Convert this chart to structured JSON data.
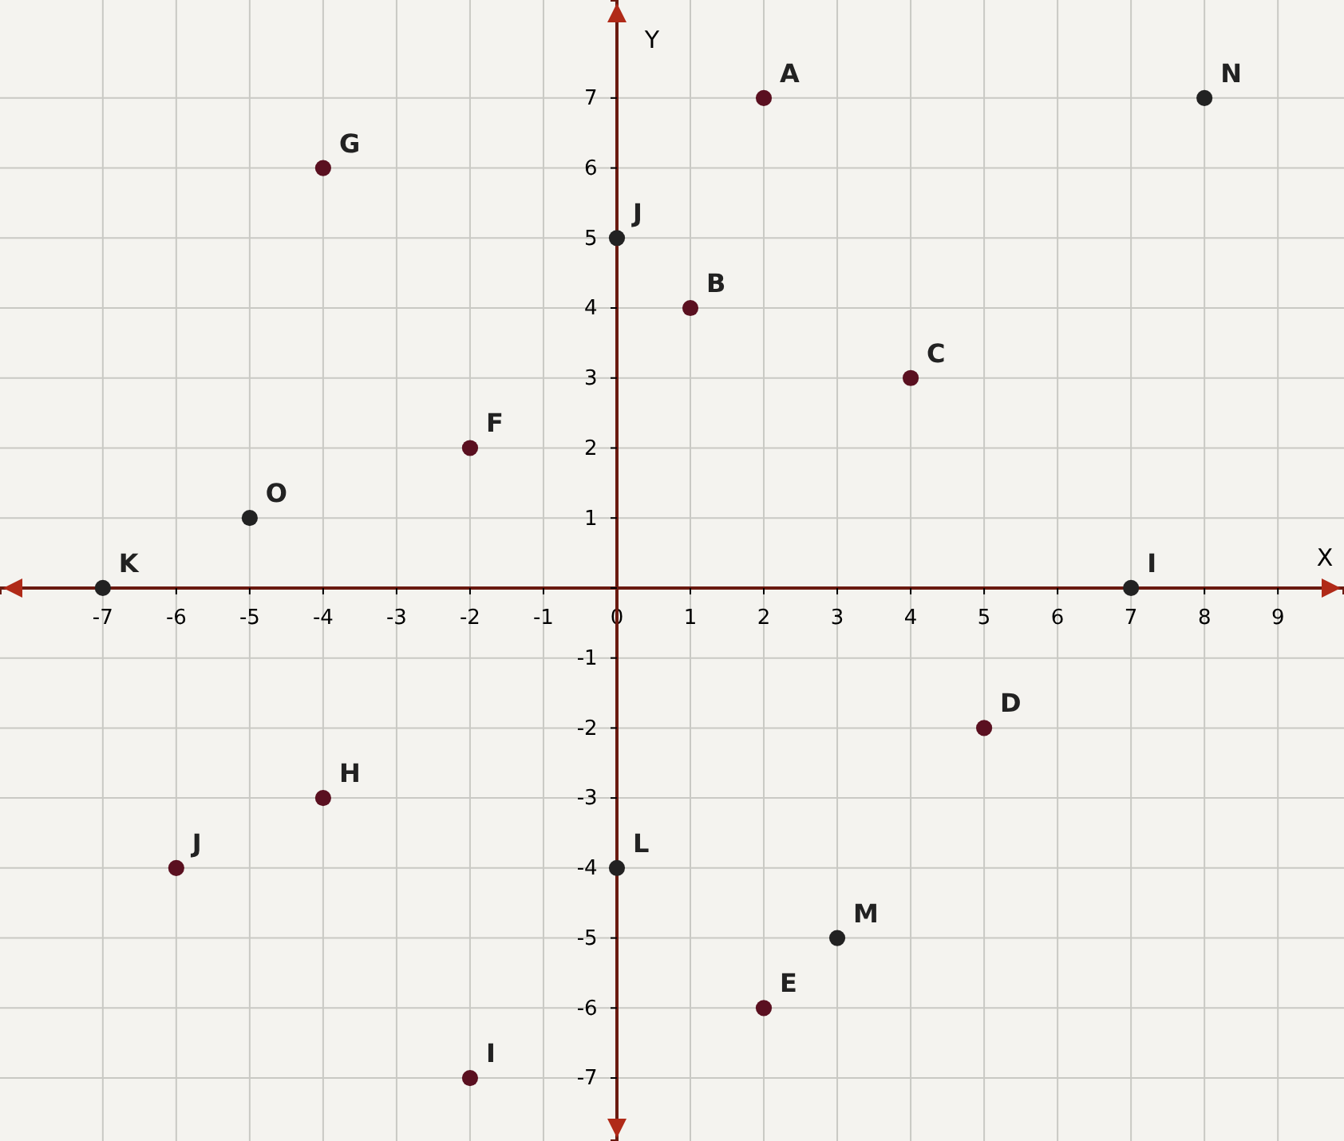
{
  "chart_data": {
    "type": "scatter",
    "xlabel": "X",
    "ylabel": "Y",
    "xlim": [
      -8.4,
      9.9
    ],
    "ylim": [
      -7.9,
      8.4
    ],
    "xticks": [
      -7,
      -6,
      -5,
      -4,
      -3,
      -2,
      -1,
      0,
      1,
      2,
      3,
      4,
      5,
      6,
      7,
      8,
      9
    ],
    "yticks": [
      -7,
      -6,
      -5,
      -4,
      -3,
      -2,
      -1,
      {
        "value": 0,
        "label": null
      },
      1,
      2,
      3,
      4,
      5,
      6,
      7
    ],
    "grid": true,
    "marker": "circle",
    "series": [
      {
        "name": "A",
        "color": "#5a1020",
        "x": [
          2
        ],
        "values": [
          7
        ]
      },
      {
        "name": "B",
        "color": "#5a1020",
        "x": [
          1
        ],
        "values": [
          4
        ]
      },
      {
        "name": "C",
        "color": "#5a1020",
        "x": [
          4
        ],
        "values": [
          3
        ]
      },
      {
        "name": "D",
        "color": "#5a1020",
        "x": [
          5
        ],
        "values": [
          -2
        ]
      },
      {
        "name": "E",
        "color": "#5a1020",
        "x": [
          2
        ],
        "values": [
          -6
        ]
      },
      {
        "name": "F",
        "color": "#5a1020",
        "x": [
          -2
        ],
        "values": [
          2
        ]
      },
      {
        "name": "G",
        "color": "#5a1020",
        "x": [
          -4
        ],
        "values": [
          6
        ]
      },
      {
        "name": "H",
        "color": "#5a1020",
        "x": [
          -4
        ],
        "values": [
          -3
        ]
      },
      {
        "name": "I",
        "color": "#5a1020",
        "x": [
          -2
        ],
        "values": [
          -7
        ]
      },
      {
        "name": "J",
        "color": "#5a1020",
        "x": [
          -6
        ],
        "values": [
          -4
        ]
      },
      {
        "name": "K",
        "color": "#222222",
        "x": [
          -7
        ],
        "values": [
          0
        ]
      },
      {
        "name": "L",
        "color": "#222222",
        "x": [
          0
        ],
        "values": [
          -4
        ]
      },
      {
        "name": "M",
        "color": "#222222",
        "x": [
          3
        ],
        "values": [
          -5
        ]
      },
      {
        "name": "N",
        "color": "#222222",
        "x": [
          8
        ],
        "values": [
          7
        ]
      },
      {
        "name": "O",
        "color": "#222222",
        "x": [
          -5
        ],
        "values": [
          1
        ]
      },
      {
        "name": "I",
        "color": "#222222",
        "x": [
          7
        ],
        "values": [
          0
        ]
      },
      {
        "name": "J",
        "color": "#222222",
        "x": [
          0
        ],
        "values": [
          5
        ]
      }
    ]
  }
}
